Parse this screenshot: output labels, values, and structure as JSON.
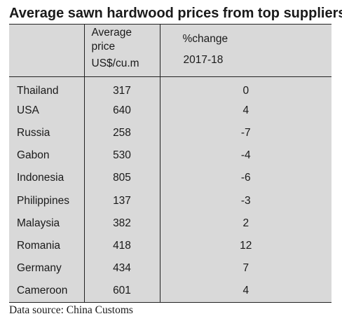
{
  "title": "Average sawn hardwood prices from top suppliers",
  "table": {
    "headers": {
      "country": "",
      "price_line1": "Average",
      "price_line2": "price",
      "price_line3": "US$/cu.m",
      "change_line1": "%change",
      "change_line2": "2017-18"
    },
    "rows": [
      {
        "country": "Thailand",
        "price": "317",
        "change": "0"
      },
      {
        "country": "USA",
        "price": "640",
        "change": "4"
      },
      {
        "country": "Russia",
        "price": "258",
        "change": "-7"
      },
      {
        "country": "Gabon",
        "price": "530",
        "change": "-4"
      },
      {
        "country": "Indonesia",
        "price": "805",
        "change": "-6"
      },
      {
        "country": "Philippines",
        "price": "137",
        "change": "-3"
      },
      {
        "country": "Malaysia",
        "price": "382",
        "change": "2"
      },
      {
        "country": "Romania",
        "price": "418",
        "change": "12"
      },
      {
        "country": "Germany",
        "price": "434",
        "change": "7"
      },
      {
        "country": "Cameroon",
        "price": "601",
        "change": "4"
      }
    ]
  },
  "source": "Data source: China Customs",
  "colors": {
    "table_background": "#d9d9d9",
    "rule": "#222222"
  }
}
